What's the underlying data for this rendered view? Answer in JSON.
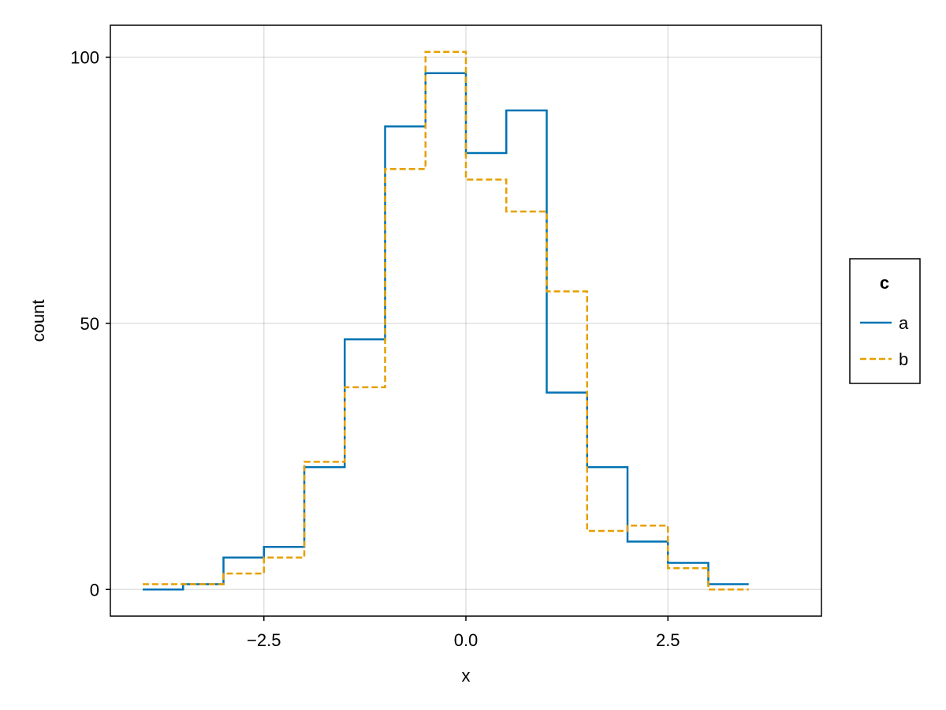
{
  "chart_data": {
    "type": "line",
    "step": "histogram",
    "title": "",
    "xlabel": "x",
    "ylabel": "count",
    "xlim": [
      -4.4,
      4.4
    ],
    "ylim": [
      -5,
      106
    ],
    "xticks": [
      -2.5,
      0.0,
      2.5
    ],
    "xtick_labels": [
      "−2.5",
      "0.0",
      "2.5"
    ],
    "yticks": [
      0,
      50,
      100
    ],
    "ytick_labels": [
      "0",
      "50",
      "100"
    ],
    "grid": true,
    "legend": {
      "title": "c",
      "placement": "right",
      "entries": [
        {
          "label": "a",
          "color": "#0072b2",
          "style": "solid"
        },
        {
          "label": "b",
          "color": "#e69f00",
          "style": "dashed"
        }
      ]
    },
    "bin_edges": [
      -4.0,
      -3.5,
      -3.0,
      -2.5,
      -2.0,
      -1.5,
      -1.0,
      -0.5,
      0.0,
      0.5,
      1.0,
      1.5,
      2.0,
      2.5,
      3.0,
      3.5
    ],
    "series": [
      {
        "name": "a",
        "color": "#0072b2",
        "style": "solid",
        "values": [
          0,
          1,
          6,
          8,
          23,
          47,
          87,
          97,
          82,
          90,
          37,
          23,
          9,
          5,
          1
        ]
      },
      {
        "name": "b",
        "color": "#e69f00",
        "style": "dashed",
        "values": [
          1,
          1,
          3,
          6,
          24,
          38,
          79,
          101,
          77,
          71,
          56,
          11,
          12,
          4,
          0
        ]
      }
    ]
  }
}
